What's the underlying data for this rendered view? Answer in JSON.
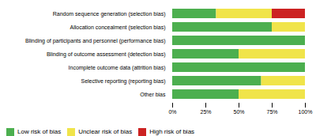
{
  "chart_data": {
    "type": "bar",
    "orientation": "horizontal",
    "stacked": true,
    "categories": [
      "Random sequence generation (selection bias)",
      "Allocation concealment (selection bias)",
      "Blinding of participants and personnel (performance bias)",
      "Blinding of outcome assessment (detection bias)",
      "Incomplete outcome data (attrition bias)",
      "Selective reporting (reporting bias)",
      "Other bias"
    ],
    "series": [
      {
        "name": "Low risk of bias",
        "color": "#4caf4f",
        "values": [
          33,
          75,
          100,
          50,
          100,
          67,
          50
        ]
      },
      {
        "name": "Unclear risk of bias",
        "color": "#f0e44a",
        "values": [
          42,
          25,
          0,
          50,
          0,
          33,
          50
        ]
      },
      {
        "name": "High risk of bias",
        "color": "#cc2222",
        "values": [
          25,
          0,
          0,
          0,
          0,
          0,
          0
        ]
      }
    ],
    "xlim": [
      0,
      100
    ],
    "xticks": [
      {
        "value": 0,
        "label": "0%"
      },
      {
        "value": 25,
        "label": "25%"
      },
      {
        "value": 50,
        "label": "50%"
      },
      {
        "value": 75,
        "label": "75%"
      },
      {
        "value": 100,
        "label": "100%"
      }
    ],
    "grid": false,
    "legend": "bottom"
  }
}
